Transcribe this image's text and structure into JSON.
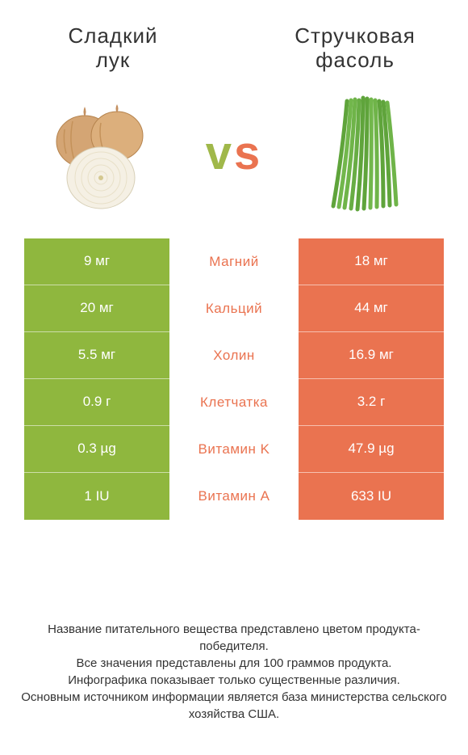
{
  "left": {
    "title": "Сладкий\nлук",
    "color": "#8fb73e"
  },
  "right": {
    "title": "Стручковая\nфасоль",
    "color": "#ea7350"
  },
  "vs": "vs",
  "rows": [
    {
      "left": "9 мг",
      "label": "Магний",
      "right": "18 мг",
      "winner": "right"
    },
    {
      "left": "20 мг",
      "label": "Кальций",
      "right": "44 мг",
      "winner": "right"
    },
    {
      "left": "5.5 мг",
      "label": "Холин",
      "right": "16.9 мг",
      "winner": "right"
    },
    {
      "left": "0.9 г",
      "label": "Клетчатка",
      "right": "3.2 г",
      "winner": "right"
    },
    {
      "left": "0.3 µg",
      "label": "Витамин K",
      "right": "47.9 µg",
      "winner": "right"
    },
    {
      "left": "1 IU",
      "label": "Витамин A",
      "right": "633 IU",
      "winner": "right"
    }
  ],
  "footer": "Название питательного вещества представлено цветом продукта-победителя.\nВсе значения представлены для 100 граммов продукта.\nИнфографика показывает только существенные различия.\nОсновным источником информации является база министерства сельского хозяйства США."
}
